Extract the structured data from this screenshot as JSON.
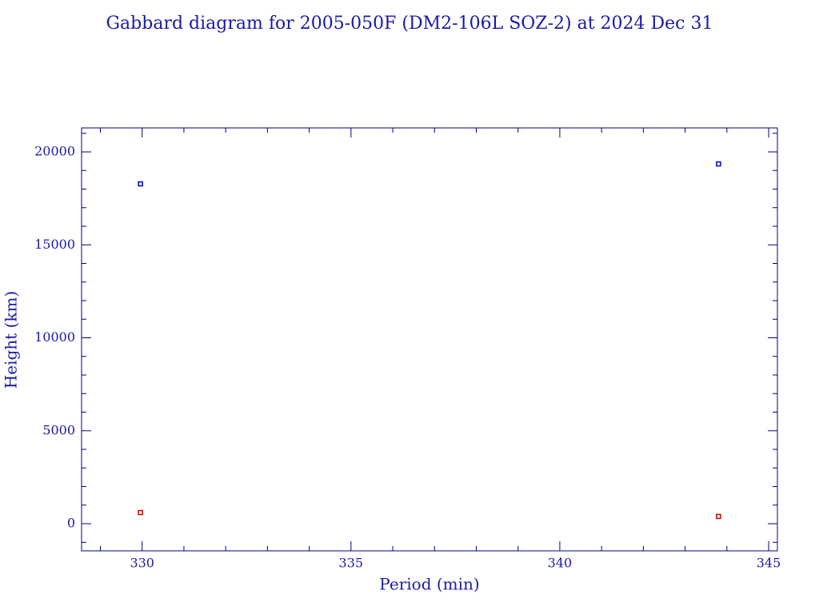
{
  "chart_data": {
    "type": "scatter",
    "title": "Gabbard diagram for 2005-050F (DM2-106L SOZ-2) at 2024 Dec 31",
    "x_label": "Period (min)",
    "y_label": "Height (km)",
    "x": [
      329.96,
      343.8
    ],
    "series": [
      {
        "color": "#0000cc",
        "values": [
          18280,
          19355
        ]
      },
      {
        "color": "#cc0000",
        "values": [
          600,
          390
        ]
      }
    ],
    "xlim": [
      328.55,
      345.21
    ],
    "ylim": [
      -1460,
      21290
    ],
    "xticks": [
      330,
      335,
      340,
      345
    ],
    "yticks": [
      0,
      5000,
      10000,
      15000,
      20000
    ],
    "xminorticks": [
      329,
      331,
      332,
      333,
      334,
      336,
      337,
      338,
      339,
      341,
      342,
      343,
      344
    ],
    "yminorticks": [
      -1000,
      1000,
      2000,
      3000,
      4000,
      6000,
      7000,
      8000,
      9000,
      11000,
      12000,
      13000,
      14000,
      16000,
      17000,
      18000,
      19000,
      21000
    ],
    "axis_color": "#00007a",
    "text_color": "#1a1aa8"
  }
}
